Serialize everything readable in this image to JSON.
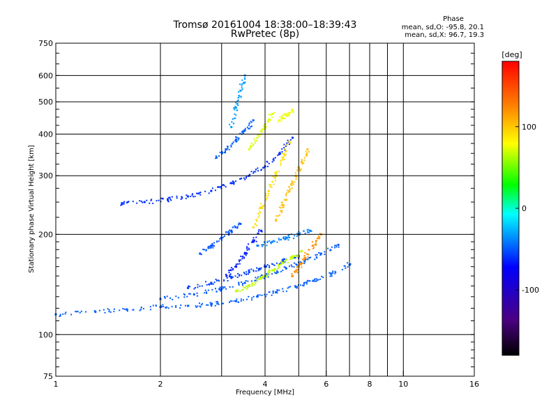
{
  "chart_data": {
    "type": "scatter",
    "title": "Tromsø 20161004 18:38:00–18:39:43",
    "subtitle": "RwPretec (8p)",
    "xlabel": "Frequency [MHz]",
    "ylabel": "Stationary phase Virtual Height [km]",
    "x_scale": "log",
    "y_scale": "log",
    "xlim": [
      1,
      16
    ],
    "ylim": [
      75,
      750
    ],
    "x_ticks": [
      1,
      2,
      4,
      6,
      8,
      10,
      16
    ],
    "x_tick_labels": [
      "1",
      "2",
      "4",
      "6",
      "8",
      "10",
      "16"
    ],
    "x_minor_ticks": [
      3,
      5,
      7,
      9
    ],
    "y_ticks": [
      75,
      100,
      200,
      300,
      400,
      500,
      600,
      750
    ],
    "y_tick_labels": [
      "75",
      "100",
      "200",
      "300",
      "400",
      "500",
      "600",
      "750"
    ],
    "grid": true,
    "phase_stats": {
      "heading": "Phase",
      "o_line": "mean, sd,O: -95.8, 20.1",
      "x_line": "mean, sd,X:  96.7, 19.3"
    },
    "colorbar": {
      "label": "[deg]",
      "range": [
        -180,
        180
      ],
      "ticks": [
        100,
        0,
        -100
      ],
      "tick_labels": [
        "100",
        "0",
        "-100"
      ],
      "colormap": "rainbow"
    },
    "traces": [
      {
        "x": [
          1.0,
          1.3,
          1.6,
          2.0,
          2.4,
          2.8,
          3.3,
          3.8,
          4.3,
          4.9,
          5.5,
          6.2,
          7.0
        ],
        "y": [
          115,
          117,
          119,
          121,
          122,
          123,
          126,
          130,
          134,
          139,
          145,
          152,
          162
        ],
        "phase": -110
      },
      {
        "x": [
          2.0,
          2.5,
          3.0,
          3.5,
          4.0,
          4.6,
          5.2,
          5.8,
          6.5
        ],
        "y": [
          128,
          132,
          137,
          143,
          150,
          158,
          166,
          175,
          186
        ],
        "phase": -112
      },
      {
        "x": [
          2.4,
          2.8,
          3.2,
          3.6,
          4.0,
          4.5,
          5.0
        ],
        "y": [
          138,
          143,
          148,
          154,
          160,
          166,
          172
        ],
        "phase": -120
      },
      {
        "x": [
          1.55,
          1.8,
          2.1,
          2.4,
          2.8,
          3.2,
          3.6,
          4.0,
          4.4,
          4.8
        ],
        "y": [
          248,
          250,
          254,
          260,
          270,
          285,
          300,
          320,
          350,
          390
        ],
        "phase": -125
      },
      {
        "x": [
          2.9,
          3.1,
          3.3,
          3.5,
          3.7
        ],
        "y": [
          340,
          360,
          385,
          410,
          440
        ],
        "phase": -110
      },
      {
        "x": [
          3.1,
          3.3,
          3.5,
          3.7,
          3.9
        ],
        "y": [
          150,
          160,
          175,
          190,
          205
        ],
        "phase": -130
      },
      {
        "x": [
          3.8,
          4.2,
          4.6,
          5.0,
          5.4
        ],
        "y": [
          185,
          190,
          195,
          200,
          205
        ],
        "phase": -100
      },
      {
        "x": [
          3.3,
          3.6,
          3.9,
          4.2,
          4.5,
          4.8,
          5.1
        ],
        "y": [
          135,
          140,
          148,
          156,
          164,
          170,
          178
        ],
        "phase": 80
      },
      {
        "x": [
          3.7,
          3.9,
          4.1,
          4.3,
          4.5,
          4.7
        ],
        "y": [
          210,
          240,
          270,
          300,
          340,
          380
        ],
        "phase": 110
      },
      {
        "x": [
          4.3,
          4.5,
          4.7,
          4.9,
          5.1,
          5.3
        ],
        "y": [
          220,
          245,
          270,
          300,
          330,
          360
        ],
        "phase": 120
      },
      {
        "x": [
          3.6,
          3.8,
          4.0,
          4.2
        ],
        "y": [
          360,
          390,
          420,
          460
        ],
        "phase": 90
      },
      {
        "x": [
          4.4,
          4.6,
          4.8
        ],
        "y": [
          440,
          455,
          470
        ],
        "phase": 95
      },
      {
        "x": [
          3.2,
          3.3,
          3.4,
          3.5
        ],
        "y": [
          420,
          480,
          540,
          600
        ],
        "phase": -90
      },
      {
        "x": [
          4.8,
          5.0,
          5.2,
          5.5,
          5.8
        ],
        "y": [
          150,
          160,
          170,
          185,
          200
        ],
        "phase": 135
      },
      {
        "x": [
          2.6,
          2.8,
          3.0,
          3.2,
          3.4
        ],
        "y": [
          175,
          185,
          195,
          205,
          215
        ],
        "phase": -115
      }
    ]
  }
}
